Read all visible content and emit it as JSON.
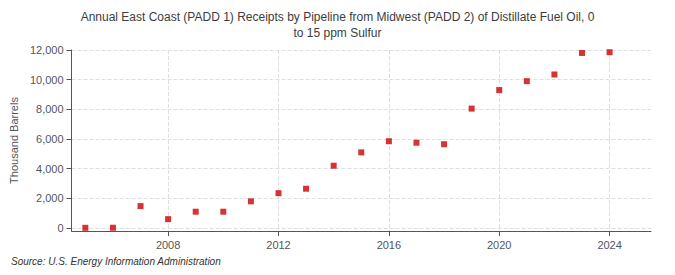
{
  "chart_data": {
    "type": "scatter",
    "title": "Annual East Coast (PADD 1) Receipts by Pipeline from Midwest (PADD 2) of Distillate Fuel Oil, 0\nto 15 ppm Sulfur",
    "ylabel": "Thousand Barrels",
    "annotation": "Source: U.S. Energy Information Administration",
    "x": [
      2005,
      2006,
      2007,
      2008,
      2009,
      2010,
      2011,
      2012,
      2013,
      2014,
      2015,
      2016,
      2017,
      2018,
      2019,
      2020,
      2021,
      2022,
      2023,
      2024
    ],
    "values": [
      15,
      20,
      1480,
      600,
      1100,
      1100,
      1800,
      2350,
      2650,
      4200,
      5100,
      5850,
      5750,
      5650,
      8050,
      9300,
      9900,
      10350,
      11800,
      11850
    ],
    "color": "#cc0000",
    "marker": "square",
    "xlim": [
      2004.5,
      2025.5
    ],
    "xticks": [
      2008,
      2012,
      2016,
      2020,
      2024
    ],
    "ylim": [
      -200,
      12000
    ],
    "yticks": [
      0,
      {
        "value": 2000,
        "label": "2,000"
      },
      {
        "value": 4000,
        "label": "4,000"
      },
      {
        "value": 6000,
        "label": "6,000"
      },
      {
        "value": 8000,
        "label": "8,000"
      },
      {
        "value": 10000,
        "label": "10,000"
      },
      {
        "value": 12000,
        "label": "12,000"
      }
    ],
    "grid": true
  }
}
